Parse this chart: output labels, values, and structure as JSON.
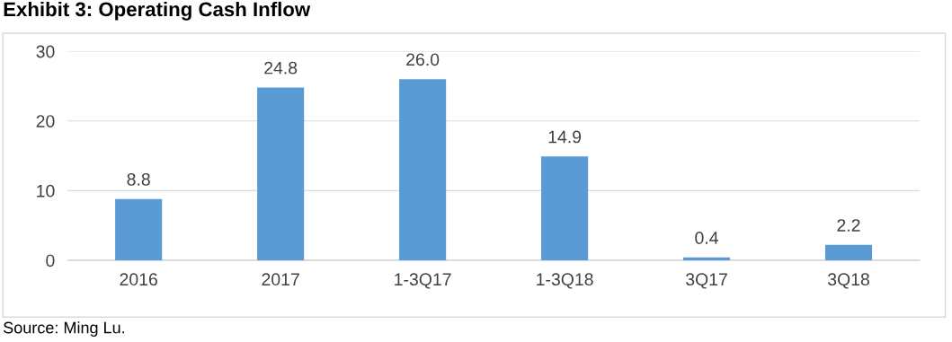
{
  "chart_data": {
    "type": "bar",
    "title": "Exhibit 3: Operating Cash Inflow",
    "categories": [
      "2016",
      "2017",
      "1-3Q17",
      "1-3Q18",
      "3Q17",
      "3Q18"
    ],
    "values": [
      8.8,
      24.8,
      26.0,
      14.9,
      0.4,
      2.2
    ],
    "value_labels": [
      "8.8",
      "24.8",
      "26.0",
      "14.9",
      "0.4",
      "2.2"
    ],
    "color": "#5b9bd5",
    "ylim": [
      0,
      30
    ],
    "yticks": [
      0,
      10,
      20,
      30
    ],
    "grid": "y",
    "annotations": [
      "Source: Ming Lu."
    ]
  }
}
